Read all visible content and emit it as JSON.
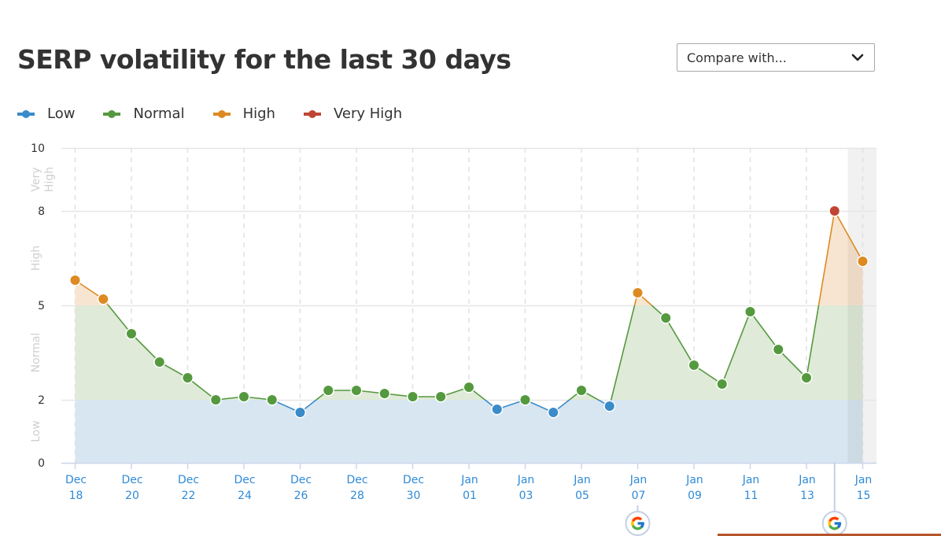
{
  "header": {
    "title": "SERP volatility for the last 30 days",
    "compare_dropdown": {
      "selected": "Compare with...",
      "icon": "chevron-down-icon"
    }
  },
  "legend": [
    {
      "label": "Low",
      "color": "#3a8bc9"
    },
    {
      "label": "Normal",
      "color": "#55993f"
    },
    {
      "label": "High",
      "color": "#dd8a22"
    },
    {
      "label": "Very High",
      "color": "#bf4535"
    }
  ],
  "chart_data": {
    "type": "line",
    "title": "SERP volatility for the last 30 days",
    "xlabel": "",
    "ylabel": "",
    "ylim": [
      0,
      10
    ],
    "y_ticks": [
      0,
      2,
      5,
      8,
      10
    ],
    "y_bands": [
      {
        "label": "Low",
        "from": 0,
        "to": 2,
        "color": "#3a8bc9"
      },
      {
        "label": "Normal",
        "from": 2,
        "to": 5,
        "color": "#55993f"
      },
      {
        "label": "High",
        "from": 5,
        "to": 8,
        "color": "#dd8a22"
      },
      {
        "label": "Very High",
        "from": 8,
        "to": 10,
        "color": "#bf4535"
      }
    ],
    "grid": true,
    "legend_position": "top-left",
    "x_tick_labels": [
      [
        "Dec",
        "18"
      ],
      [
        "Dec",
        "20"
      ],
      [
        "Dec",
        "22"
      ],
      [
        "Dec",
        "24"
      ],
      [
        "Dec",
        "26"
      ],
      [
        "Dec",
        "28"
      ],
      [
        "Dec",
        "30"
      ],
      [
        "Jan",
        "01"
      ],
      [
        "Jan",
        "03"
      ],
      [
        "Jan",
        "05"
      ],
      [
        "Jan",
        "07"
      ],
      [
        "Jan",
        "09"
      ],
      [
        "Jan",
        "11"
      ],
      [
        "Jan",
        "13"
      ],
      [
        "Jan",
        "15"
      ]
    ],
    "categories": [
      "Dec 18",
      "Dec 19",
      "Dec 20",
      "Dec 21",
      "Dec 22",
      "Dec 23",
      "Dec 24",
      "Dec 25",
      "Dec 26",
      "Dec 27",
      "Dec 28",
      "Dec 29",
      "Dec 30",
      "Dec 31",
      "Jan 01",
      "Jan 02",
      "Jan 03",
      "Jan 04",
      "Jan 05",
      "Jan 06",
      "Jan 07",
      "Jan 08",
      "Jan 09",
      "Jan 10",
      "Jan 11",
      "Jan 12",
      "Jan 13",
      "Jan 14",
      "Jan 15"
    ],
    "series": [
      {
        "name": "SERP volatility",
        "values": [
          5.8,
          5.2,
          4.1,
          3.2,
          2.7,
          2.0,
          2.1,
          2.0,
          1.6,
          2.3,
          2.3,
          2.2,
          2.1,
          2.1,
          2.4,
          1.7,
          2.0,
          1.6,
          2.3,
          1.8,
          5.4,
          4.6,
          3.1,
          2.5,
          4.8,
          3.6,
          2.7,
          8.0,
          6.4
        ]
      }
    ],
    "annotations": [
      {
        "type": "google-update-marker",
        "date": "Jan 07"
      },
      {
        "type": "google-update-marker",
        "date": "Jan 14"
      },
      {
        "type": "highlighted-column",
        "date": "Jan 15"
      }
    ]
  }
}
